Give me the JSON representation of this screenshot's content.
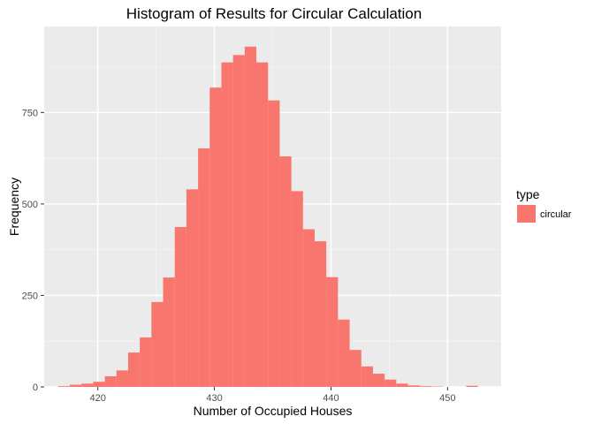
{
  "chart_data": {
    "type": "bar",
    "title": "Histogram of Results for Circular Calculation",
    "xlabel": "Number of Occupied Houses",
    "ylabel": "Frequency",
    "xlim": [
      415.4,
      454.6
    ],
    "ylim": [
      0,
      985
    ],
    "xticks": [
      420,
      430,
      440,
      450
    ],
    "yticks": [
      0,
      250,
      500,
      750
    ],
    "bin_width": 1,
    "bin_starts": [
      416.6,
      417.6,
      418.6,
      419.6,
      420.6,
      421.6,
      422.6,
      423.6,
      424.6,
      425.6,
      426.6,
      427.6,
      428.6,
      429.6,
      430.6,
      431.6,
      432.6,
      433.6,
      434.6,
      435.6,
      436.6,
      437.6,
      438.6,
      439.6,
      440.6,
      441.6,
      442.6,
      443.6,
      444.6,
      445.6,
      446.6,
      447.6,
      448.6,
      449.6,
      450.6,
      451.6,
      452.6
    ],
    "values": [
      2,
      6,
      9,
      14,
      29,
      45,
      94,
      135,
      232,
      299,
      437,
      540,
      652,
      818,
      887,
      907,
      930,
      887,
      783,
      630,
      535,
      431,
      398,
      300,
      184,
      101,
      56,
      36,
      20,
      9,
      4,
      2,
      1,
      0,
      0,
      3,
      0
    ],
    "grid": true,
    "series": [
      {
        "name": "circular",
        "color": "#F8766D"
      }
    ],
    "legend": {
      "title": "type",
      "position": "right"
    }
  },
  "colors": {
    "panel_bg": "#EBEBEB",
    "grid_major": "#FFFFFF",
    "bar_fill": "#F8766D"
  }
}
